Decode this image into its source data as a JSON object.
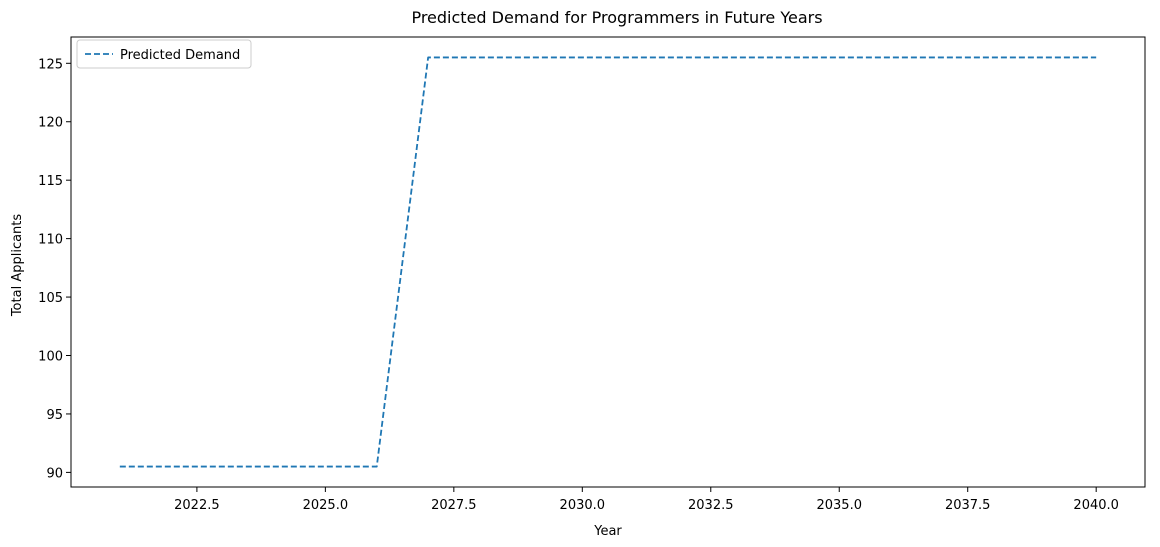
{
  "chart_data": {
    "type": "line",
    "title": "Predicted Demand for Programmers in Future Years",
    "xlabel": "Year",
    "ylabel": "Total Applicants",
    "xlim": [
      2020.05,
      2040.95
    ],
    "ylim": [
      88.75,
      127.25
    ],
    "xticks": [
      2022.5,
      2025.0,
      2027.5,
      2030.0,
      2032.5,
      2035.0,
      2037.5,
      2040.0
    ],
    "xtick_labels": [
      "2022.5",
      "2025.0",
      "2027.5",
      "2030.0",
      "2032.5",
      "2035.0",
      "2037.5",
      "2040.0"
    ],
    "yticks": [
      90,
      95,
      100,
      105,
      110,
      115,
      120,
      125
    ],
    "ytick_labels": [
      "90",
      "95",
      "100",
      "105",
      "110",
      "115",
      "120",
      "125"
    ],
    "grid": false,
    "legend_position": "top-left",
    "series": [
      {
        "name": "Predicted Demand",
        "color": "#1f77b4",
        "line_style": "dashed",
        "x": [
          2021,
          2022,
          2023,
          2024,
          2025,
          2026,
          2027,
          2028,
          2029,
          2030,
          2031,
          2032,
          2033,
          2034,
          2035,
          2036,
          2037,
          2038,
          2039,
          2040
        ],
        "y": [
          90.5,
          90.5,
          90.5,
          90.5,
          90.5,
          90.5,
          125.5,
          125.5,
          125.5,
          125.5,
          125.5,
          125.5,
          125.5,
          125.5,
          125.5,
          125.5,
          125.5,
          125.5,
          125.5,
          125.5
        ]
      }
    ]
  }
}
